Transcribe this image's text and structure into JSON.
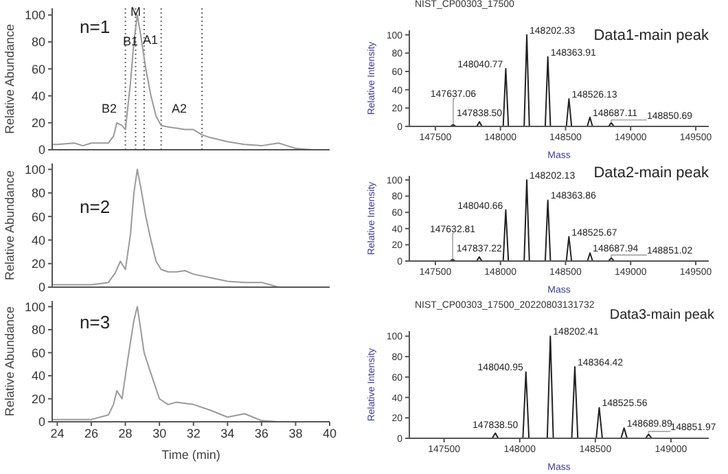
{
  "chart_data": [
    {
      "type": "line",
      "ylabel": "Relative Abundance",
      "color": "#9a9a9a",
      "xlim": [
        23.7,
        40
      ],
      "xticks": [
        24,
        26,
        28,
        30,
        32,
        34,
        36,
        38,
        40
      ],
      "ylim": [
        0,
        105
      ],
      "yticks": [
        0,
        20,
        40,
        60,
        80,
        100
      ],
      "tick_labels": "y",
      "x": [
        23.7,
        24,
        25,
        25.5,
        26,
        27,
        27.3,
        27.5,
        27.8,
        28.0,
        28.3,
        28.5,
        28.7,
        28.9,
        29.2,
        29.5,
        29.8,
        30.1,
        30.5,
        31,
        31.5,
        32,
        32.5,
        33,
        34,
        35,
        36,
        37,
        37.5,
        38,
        39,
        40
      ],
      "values": [
        4,
        4,
        5,
        3,
        5,
        5,
        10,
        20,
        18,
        15,
        50,
        80,
        100,
        85,
        60,
        40,
        25,
        18,
        17,
        16,
        15,
        15,
        11,
        9,
        6,
        4,
        3,
        5,
        3,
        1,
        0,
        0
      ],
      "ref_lines": [
        {
          "axis": "x",
          "value": 28.0,
          "color": "#666666",
          "line_style": "dotted"
        },
        {
          "axis": "x",
          "value": 28.6,
          "color": "#666666",
          "line_style": "dotted"
        },
        {
          "axis": "x",
          "value": 29.1,
          "color": "#666666",
          "line_style": "dotted"
        },
        {
          "axis": "x",
          "value": 30.1,
          "color": "#666666",
          "line_style": "dotted"
        },
        {
          "axis": "x",
          "value": 32.5,
          "color": "#666666",
          "line_style": "dotted"
        }
      ],
      "annotations": [
        "n=1",
        "B2",
        {
          "text": "B1",
          "x": 28.3,
          "y": 80
        },
        {
          "text": "M",
          "x": 28.6,
          "y": 102
        },
        "A1",
        "A2"
      ]
    },
    {
      "type": "line",
      "title": "NIST_CP00303_17500",
      "xlabel": "Mass",
      "ylabel": "Relative Intensity",
      "color": "#222222",
      "xlim": [
        147300,
        149600
      ],
      "xticks": [
        147500,
        148000,
        148500,
        149000,
        149500
      ],
      "ylim": [
        0,
        105
      ],
      "yticks": [
        0,
        20,
        40,
        60,
        80,
        100
      ],
      "x": [
        147300,
        147617,
        147637.06,
        147657,
        147818,
        147838.5,
        147858,
        148021,
        148040.77,
        148061,
        148182,
        148202.33,
        148222,
        148344,
        148363.91,
        148384,
        148506,
        148526.13,
        148546,
        148667,
        148687.11,
        148707,
        148831,
        148850.69,
        148871,
        149600
      ],
      "values": [
        0,
        0,
        2,
        0,
        0,
        5,
        0,
        0,
        63,
        0,
        0,
        100,
        0,
        0,
        76,
        0,
        0,
        30,
        0,
        0,
        10,
        0,
        0,
        4,
        0,
        0
      ],
      "annotations": [
        "Data1-main peak",
        {
          "text": "147637.06",
          "x": 147637.06,
          "y": 2
        },
        {
          "text": "147838.50",
          "x": 147838.5,
          "y": 5
        },
        {
          "text": "148040.77",
          "x": 148040.77,
          "y": 63
        },
        {
          "text": "148202.33",
          "x": 148202.33,
          "y": 100
        },
        {
          "text": "148363.91",
          "x": 148363.91,
          "y": 76
        },
        {
          "text": "148526.13",
          "x": 148526.13,
          "y": 30
        },
        {
          "text": "148687.11",
          "x": 148687.11,
          "y": 10
        },
        {
          "text": "148850.69",
          "x": 148850.69,
          "y": 4
        }
      ]
    },
    {
      "type": "line",
      "ylabel": "Relative Abundance",
      "color": "#9a9a9a",
      "xlim": [
        23.7,
        40
      ],
      "xticks": [
        24,
        26,
        28,
        30,
        32,
        34,
        36,
        38,
        40
      ],
      "ylim": [
        0,
        105
      ],
      "yticks": [
        0,
        20,
        40,
        60,
        80,
        100
      ],
      "tick_labels": "y",
      "x": [
        23.7,
        24,
        25,
        26,
        27,
        27.4,
        27.7,
        28.0,
        28.3,
        28.5,
        28.7,
        28.9,
        29.2,
        29.5,
        29.8,
        30.1,
        30.5,
        31,
        31.5,
        32,
        33,
        34,
        35,
        36,
        36.5,
        37,
        38,
        40
      ],
      "values": [
        2,
        2,
        2,
        2,
        4,
        12,
        22,
        15,
        45,
        80,
        100,
        85,
        60,
        40,
        22,
        15,
        13,
        13,
        14,
        11,
        8,
        5,
        4,
        4,
        2,
        0,
        0,
        0
      ],
      "annotations": [
        "n=2"
      ]
    },
    {
      "type": "line",
      "xlabel": "Mass",
      "ylabel": "Relative Intensity",
      "color": "#222222",
      "xlim": [
        147300,
        149600
      ],
      "xticks": [
        147500,
        148000,
        148500,
        149000,
        149500
      ],
      "ylim": [
        0,
        105
      ],
      "yticks": [
        0,
        20,
        40,
        60,
        80,
        100
      ],
      "x": [
        147300,
        147613,
        147632.81,
        147653,
        147817,
        147837.22,
        147857,
        148021,
        148040.66,
        148061,
        148182,
        148202.13,
        148222,
        148344,
        148363.86,
        148384,
        148506,
        148525.67,
        148546,
        148668,
        148687.94,
        148708,
        148831,
        148851.02,
        148871,
        149600
      ],
      "values": [
        0,
        0,
        2,
        0,
        0,
        5,
        0,
        0,
        63,
        0,
        0,
        100,
        0,
        0,
        75,
        0,
        0,
        30,
        0,
        0,
        10,
        0,
        0,
        4,
        0,
        0
      ],
      "annotations": [
        "Data2-main peak",
        {
          "text": "147632.81",
          "x": 147632.81,
          "y": 2
        },
        {
          "text": "147837.22",
          "x": 147837.22,
          "y": 5
        },
        {
          "text": "148040.66",
          "x": 148040.66,
          "y": 63
        },
        {
          "text": "148202.13",
          "x": 148202.13,
          "y": 100
        },
        {
          "text": "148363.86",
          "x": 148363.86,
          "y": 75
        },
        {
          "text": "148525.67",
          "x": 148525.67,
          "y": 30
        },
        {
          "text": "148687.94",
          "x": 148687.94,
          "y": 10
        },
        {
          "text": "148851.02",
          "x": 148851.02,
          "y": 4
        }
      ]
    },
    {
      "type": "line",
      "xlabel": "Time (min)",
      "ylabel": "Relative Abundance",
      "color": "#9a9a9a",
      "xlim": [
        23.7,
        40
      ],
      "xticks": [
        24,
        26,
        28,
        30,
        32,
        34,
        36,
        38,
        40
      ],
      "ylim": [
        0,
        105
      ],
      "yticks": [
        0,
        20,
        40,
        60,
        80,
        100
      ],
      "x": [
        23.7,
        24,
        25,
        26,
        27,
        27.3,
        27.5,
        27.8,
        28.2,
        28.5,
        28.7,
        28.9,
        29.1,
        29.5,
        30,
        30.5,
        31,
        32,
        33,
        34,
        35,
        35.5,
        36,
        37,
        40
      ],
      "values": [
        2,
        2,
        2,
        2,
        6,
        15,
        27,
        20,
        60,
        88,
        100,
        80,
        60,
        42,
        20,
        15,
        17,
        15,
        10,
        4,
        7,
        4,
        1,
        0,
        0
      ],
      "annotations": [
        "n=3"
      ]
    },
    {
      "type": "line",
      "title": "NIST_CP00303_17500_20220803131732",
      "xlabel": "Mass",
      "ylabel": "Relative Intensity",
      "color": "#222222",
      "xlim": [
        147270,
        149250
      ],
      "xticks": [
        147500,
        148000,
        148500,
        149000
      ],
      "ylim": [
        0,
        105
      ],
      "yticks": [
        0,
        20,
        40,
        60,
        80,
        100
      ],
      "x": [
        147270,
        147818,
        147838.5,
        147858,
        148021,
        148040.95,
        148061,
        148182,
        148202.41,
        148222,
        148344,
        148364.42,
        148384,
        148506,
        148525.56,
        148546,
        148670,
        148689.89,
        148710,
        148832,
        148851.97,
        148872,
        149250
      ],
      "values": [
        0,
        0,
        5,
        0,
        0,
        65,
        0,
        0,
        100,
        0,
        0,
        70,
        0,
        0,
        30,
        0,
        0,
        10,
        0,
        0,
        4,
        0,
        0
      ],
      "annotations": [
        "Data3-main peak",
        {
          "text": "147838.50",
          "x": 147838.5,
          "y": 5
        },
        {
          "text": "148040.95",
          "x": 148040.95,
          "y": 65
        },
        {
          "text": "148202.41",
          "x": 148202.41,
          "y": 100
        },
        {
          "text": "148364.42",
          "x": 148364.42,
          "y": 70
        },
        {
          "text": "148525.56",
          "x": 148525.56,
          "y": 30
        },
        {
          "text": "148689.89",
          "x": 148689.89,
          "y": 10
        },
        {
          "text": "148851.97",
          "x": 148851.97,
          "y": 4
        }
      ]
    }
  ]
}
